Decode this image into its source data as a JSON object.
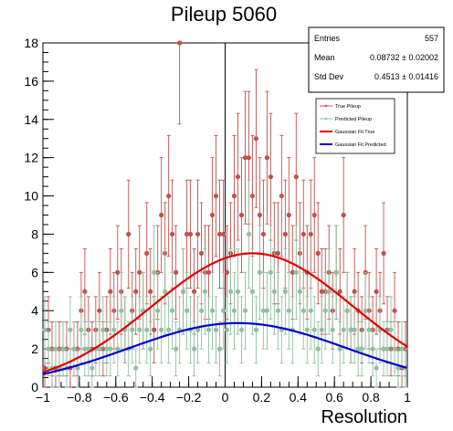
{
  "chart_data": {
    "type": "scatter",
    "title": "Pileup 5060",
    "xlabel": "Resolution",
    "ylabel": "",
    "xlim": [
      -1,
      1
    ],
    "ylim": [
      0,
      18
    ],
    "x_ticks": [
      "−1",
      "−0.8",
      "−0.6",
      "−0.4",
      "−0.2",
      "0",
      "0.2",
      "0.4",
      "0.6",
      "0.8",
      "1"
    ],
    "x_tick_values": [
      -1,
      -0.8,
      -0.6,
      -0.4,
      -0.2,
      0,
      0.2,
      0.4,
      0.6,
      0.8,
      1
    ],
    "y_ticks": [
      "0",
      "2",
      "4",
      "6",
      "8",
      "10",
      "12",
      "14",
      "16",
      "18"
    ],
    "y_tick_values": [
      0,
      2,
      4,
      6,
      8,
      10,
      12,
      14,
      16,
      18
    ],
    "grid": false,
    "legend_position": "top-right",
    "stats": {
      "entries_label": "Entries",
      "entries_value": "557",
      "mean_label": "Mean",
      "mean_value": "0.08732 ± 0.02002",
      "stddev_label": "Std Dev",
      "stddev_value": "0.4513 ± 0.01416"
    },
    "legend": [
      {
        "label": "True Pileup",
        "color": "#c0504d",
        "kind": "marker"
      },
      {
        "label": "Predicted Pileup",
        "color": "#8fbf9f",
        "kind": "marker"
      },
      {
        "label": "Gaussian Fit True",
        "color": "#e00000",
        "kind": "line"
      },
      {
        "label": "Gaussian Fit Predicted",
        "color": "#0000cc",
        "kind": "line"
      }
    ],
    "series": [
      {
        "name": "True Pileup",
        "color": "#c0504d",
        "x": [
          -0.99,
          -0.97,
          -0.95,
          -0.93,
          -0.91,
          -0.89,
          -0.87,
          -0.85,
          -0.83,
          -0.81,
          -0.79,
          -0.77,
          -0.75,
          -0.73,
          -0.71,
          -0.69,
          -0.67,
          -0.65,
          -0.63,
          -0.61,
          -0.59,
          -0.57,
          -0.55,
          -0.53,
          -0.51,
          -0.49,
          -0.47,
          -0.45,
          -0.43,
          -0.41,
          -0.39,
          -0.37,
          -0.35,
          -0.33,
          -0.31,
          -0.29,
          -0.27,
          -0.25,
          -0.23,
          -0.21,
          -0.19,
          -0.17,
          -0.15,
          -0.13,
          -0.11,
          -0.09,
          -0.07,
          -0.05,
          -0.03,
          -0.01,
          0.01,
          0.03,
          0.05,
          0.07,
          0.09,
          0.11,
          0.13,
          0.15,
          0.17,
          0.19,
          0.21,
          0.23,
          0.25,
          0.27,
          0.29,
          0.31,
          0.33,
          0.35,
          0.37,
          0.39,
          0.41,
          0.43,
          0.45,
          0.47,
          0.49,
          0.51,
          0.53,
          0.55,
          0.57,
          0.59,
          0.61,
          0.63,
          0.65,
          0.67,
          0.69,
          0.71,
          0.73,
          0.75,
          0.77,
          0.79,
          0.81,
          0.83,
          0.85,
          0.87,
          0.89,
          0.91,
          0.93,
          0.95,
          0.97,
          0.99
        ],
        "y": [
          1,
          3,
          2,
          1,
          2,
          2,
          2,
          1,
          2,
          2,
          4,
          5,
          3,
          2,
          3,
          4,
          2,
          3,
          5,
          4,
          6,
          5,
          3,
          8,
          4,
          5,
          6,
          4,
          7,
          5,
          3,
          6,
          9,
          7,
          10,
          8,
          6,
          18,
          5,
          8,
          8,
          5,
          8,
          7,
          6,
          6,
          9,
          10,
          8,
          8,
          6,
          7,
          10,
          11,
          9,
          12,
          12,
          10,
          13,
          9,
          8,
          12,
          11,
          7,
          7,
          10,
          8,
          9,
          6,
          11,
          7,
          8,
          6,
          8,
          9,
          7,
          5,
          5,
          6,
          4,
          6,
          5,
          9,
          4,
          3,
          5,
          4,
          3,
          6,
          4,
          3,
          5,
          4,
          7,
          3,
          2,
          4,
          2,
          1,
          2
        ]
      },
      {
        "name": "Predicted Pileup",
        "color": "#8fbf9f",
        "x": [
          -0.99,
          -0.97,
          -0.95,
          -0.93,
          -0.91,
          -0.89,
          -0.87,
          -0.85,
          -0.83,
          -0.81,
          -0.79,
          -0.77,
          -0.75,
          -0.73,
          -0.71,
          -0.69,
          -0.67,
          -0.65,
          -0.63,
          -0.61,
          -0.59,
          -0.57,
          -0.55,
          -0.53,
          -0.51,
          -0.49,
          -0.47,
          -0.45,
          -0.43,
          -0.41,
          -0.39,
          -0.37,
          -0.35,
          -0.33,
          -0.31,
          -0.29,
          -0.27,
          -0.25,
          -0.23,
          -0.21,
          -0.19,
          -0.17,
          -0.15,
          -0.13,
          -0.11,
          -0.09,
          -0.07,
          -0.05,
          -0.03,
          -0.01,
          0.01,
          0.03,
          0.05,
          0.07,
          0.09,
          0.11,
          0.13,
          0.15,
          0.17,
          0.19,
          0.21,
          0.23,
          0.25,
          0.27,
          0.29,
          0.31,
          0.33,
          0.35,
          0.37,
          0.39,
          0.41,
          0.43,
          0.45,
          0.47,
          0.49,
          0.51,
          0.53,
          0.55,
          0.57,
          0.59,
          0.61,
          0.63,
          0.65,
          0.67,
          0.69,
          0.71,
          0.73,
          0.75,
          0.77,
          0.79,
          0.81,
          0.83,
          0.85,
          0.87,
          0.89,
          0.91,
          0.93,
          0.95,
          0.97,
          0.99
        ],
        "y": [
          3,
          2,
          1,
          2,
          1,
          2,
          1,
          3,
          2,
          1,
          3,
          2,
          2,
          1,
          2,
          2,
          3,
          2,
          2,
          3,
          2,
          4,
          3,
          2,
          3,
          1,
          3,
          4,
          3,
          2,
          6,
          4,
          3,
          5,
          3,
          4,
          2,
          3,
          5,
          4,
          3,
          2,
          3,
          4,
          5,
          3,
          4,
          3,
          2,
          4,
          3,
          5,
          4,
          5,
          3,
          4,
          8,
          5,
          3,
          6,
          4,
          4,
          6,
          5,
          4,
          3,
          5,
          4,
          3,
          6,
          5,
          4,
          3,
          4,
          3,
          2,
          3,
          4,
          5,
          3,
          6,
          2,
          3,
          4,
          3,
          3,
          2,
          2,
          4,
          3,
          2,
          1,
          3,
          2,
          2,
          3,
          2,
          1,
          2,
          1
        ]
      }
    ],
    "fits": [
      {
        "name": "Gaussian Fit True",
        "color": "#e00000",
        "amplitude": 7.0,
        "mean": 0.15,
        "sigma": 0.55
      },
      {
        "name": "Gaussian Fit Predicted",
        "color": "#0000cc",
        "amplitude": 3.35,
        "mean": 0.07,
        "sigma": 0.6
      }
    ]
  }
}
